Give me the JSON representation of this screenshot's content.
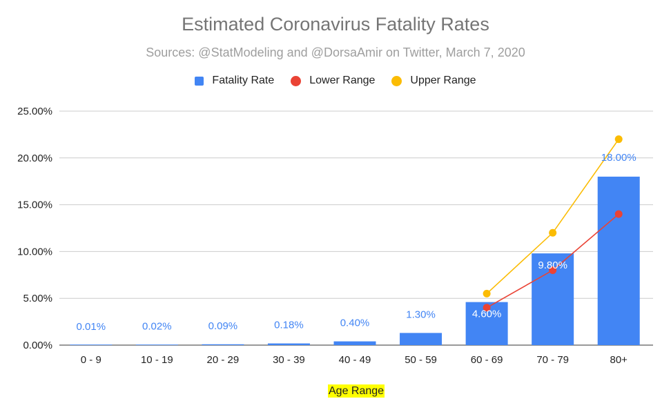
{
  "chart_data": {
    "type": "bar",
    "title": "Estimated Coronavirus Fatality Rates",
    "subtitle": "Sources: @StatModeling and @DorsaAmir on Twitter, March 7, 2020",
    "xlabel": "Age Range",
    "ylabel": "",
    "categories": [
      "0 - 9",
      "10 - 19",
      "20 - 29",
      "30 - 39",
      "40 - 49",
      "50 - 59",
      "60 - 69",
      "70 - 79",
      "80+"
    ],
    "ylim": [
      0,
      25
    ],
    "yticks": [
      0,
      5,
      10,
      15,
      20,
      25
    ],
    "ytick_labels": [
      "0.00%",
      "5.00%",
      "10.00%",
      "15.00%",
      "20.00%",
      "25.00%"
    ],
    "grid": true,
    "legend_position": "top",
    "series": [
      {
        "name": "Fatality Rate",
        "type": "bar",
        "color": "#4285f4",
        "values": [
          0.01,
          0.02,
          0.09,
          0.18,
          0.4,
          1.3,
          4.6,
          9.8,
          18.0
        ],
        "data_labels": [
          "0.01%",
          "0.02%",
          "0.09%",
          "0.18%",
          "0.40%",
          "1.30%",
          "4.60%",
          "9.80%",
          "18.00%"
        ]
      },
      {
        "name": "Lower Range",
        "type": "line",
        "color": "#ea4335",
        "values": [
          null,
          null,
          null,
          null,
          null,
          null,
          4.0,
          8.0,
          14.0
        ]
      },
      {
        "name": "Upper Range",
        "type": "line",
        "color": "#fbbc04",
        "values": [
          null,
          null,
          null,
          null,
          null,
          null,
          5.5,
          12.0,
          22.0
        ]
      }
    ]
  }
}
